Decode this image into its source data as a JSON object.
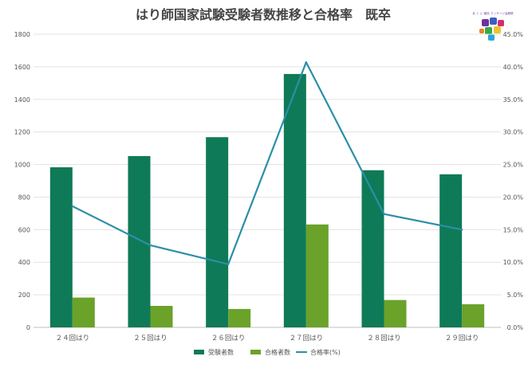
{
  "logo": {
    "caption": "あ く い 鍼灸 マッサージ治療院"
  },
  "chart_data": {
    "type": "bar",
    "title": "はり師国家試験受験者数推移と合格率　既卒",
    "categories": [
      "２４回はり",
      "２５回はり",
      "２６回はり",
      "２７回はり",
      "２８回はり",
      "２９回はり"
    ],
    "series": [
      {
        "name": "受験者数",
        "kind": "bar",
        "axis": "left",
        "color": "#0f7a57",
        "values": [
          983,
          1052,
          1168,
          1556,
          965,
          940
        ]
      },
      {
        "name": "合格者数",
        "kind": "bar",
        "axis": "left",
        "color": "#6aa22a",
        "values": [
          183,
          132,
          113,
          632,
          168,
          142
        ]
      },
      {
        "name": "合格率(%)",
        "kind": "line",
        "axis": "right",
        "color": "#2b8fa8",
        "values": [
          18.6,
          12.6,
          9.7,
          40.7,
          17.4,
          15.0
        ]
      }
    ],
    "ylim_left": [
      0,
      1800
    ],
    "yticks_left": [
      "0",
      "200",
      "400",
      "600",
      "800",
      "1000",
      "1200",
      "1400",
      "1600",
      "1800"
    ],
    "ylim_right": [
      0,
      45
    ],
    "yticks_right": [
      "0.0%",
      "5.0%",
      "10.0%",
      "15.0%",
      "20.0%",
      "25.0%",
      "30.0%",
      "35.0%",
      "40.0%",
      "45.0%"
    ],
    "grid": true,
    "legend_position": "bottom"
  }
}
